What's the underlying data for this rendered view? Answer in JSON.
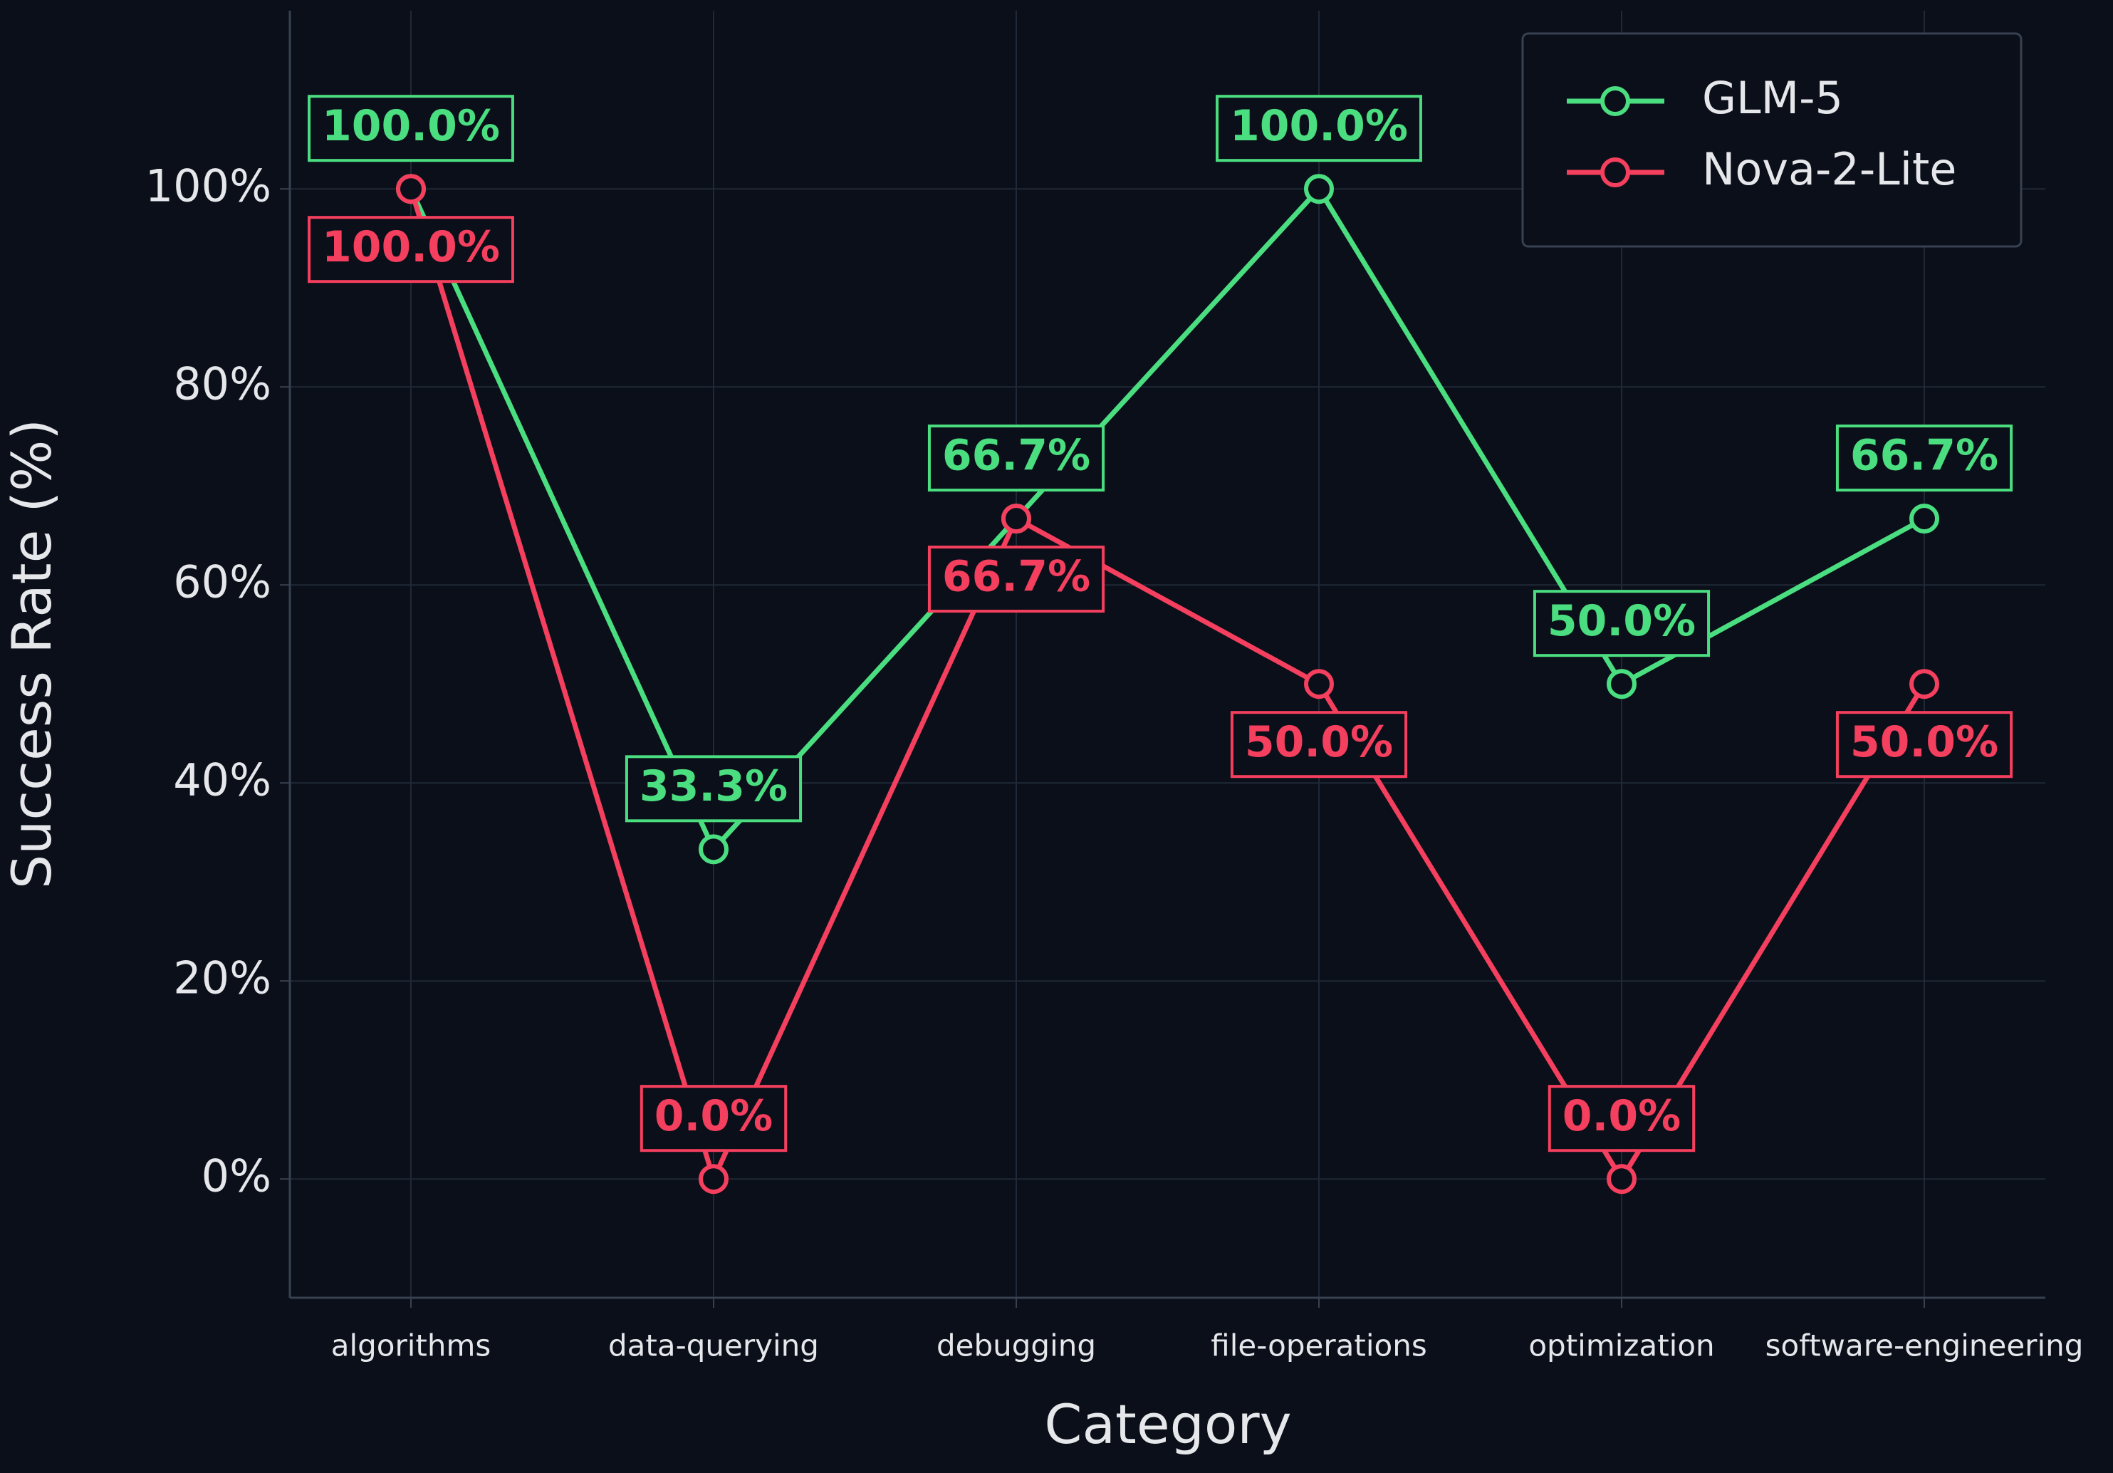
{
  "chart_data": {
    "type": "line",
    "x_label": "Category",
    "y_label": "Success Rate (%)",
    "categories": [
      "algorithms",
      "data-querying",
      "debugging",
      "file-operations",
      "optimization",
      "software-engineering"
    ],
    "series": [
      {
        "name": "GLM-5",
        "color": "#4ade80",
        "values": [
          100,
          33.3,
          66.7,
          100,
          50,
          66.7
        ],
        "value_labels": [
          "100.0%",
          "33.3%",
          "66.7%",
          "100.0%",
          "50.0%",
          "66.7%"
        ]
      },
      {
        "name": "Nova-2-Lite",
        "color": "#f43f5e",
        "values": [
          100,
          0,
          66.7,
          50,
          0,
          50
        ],
        "value_labels": [
          "100.0%",
          "0.0%",
          "66.7%",
          "50.0%",
          "0.0%",
          "50.0%"
        ]
      }
    ],
    "ylim": [
      -12,
      118
    ],
    "yticks": [
      {
        "value": 0,
        "label": "0%"
      },
      {
        "value": 20,
        "label": "20%"
      },
      {
        "value": 40,
        "label": "40%"
      },
      {
        "value": 60,
        "label": "60%"
      },
      {
        "value": 80,
        "label": "80%"
      },
      {
        "value": 100,
        "label": "100%"
      }
    ],
    "grid": true,
    "legend": "upper right"
  }
}
